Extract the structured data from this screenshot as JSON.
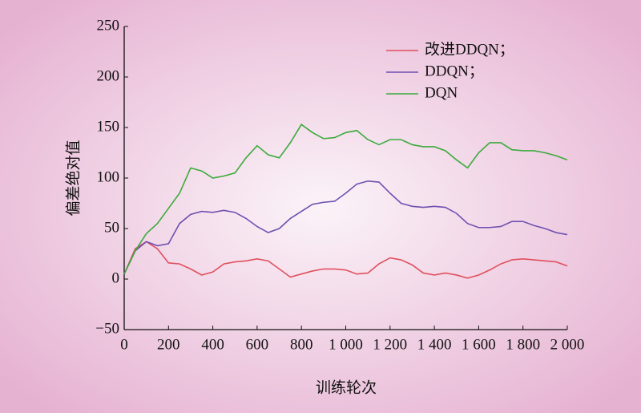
{
  "chart_data": {
    "type": "line",
    "x_label": "训练轮次",
    "y_label": "偏差绝对值",
    "x": [
      0,
      50,
      100,
      150,
      200,
      250,
      300,
      350,
      400,
      450,
      500,
      550,
      600,
      650,
      700,
      750,
      800,
      850,
      900,
      950,
      1000,
      1050,
      1100,
      1150,
      1200,
      1250,
      1300,
      1350,
      1400,
      1450,
      1500,
      1550,
      1600,
      1650,
      1700,
      1750,
      1800,
      1850,
      1900,
      1950,
      2000
    ],
    "series": [
      {
        "name": "改进DDQN；",
        "color": "#e0505e",
        "values": [
          5,
          30,
          37,
          30,
          16,
          15,
          10,
          4,
          7,
          15,
          17,
          18,
          20,
          18,
          10,
          2,
          5,
          8,
          10,
          10,
          9,
          5,
          6,
          15,
          21,
          19,
          14,
          6,
          4,
          6,
          4,
          1,
          4,
          9,
          15,
          19,
          20,
          19,
          18,
          17,
          13
        ]
      },
      {
        "name": "DDQN；",
        "color": "#7050b0",
        "values": [
          5,
          28,
          37,
          33,
          35,
          55,
          64,
          67,
          66,
          68,
          66,
          60,
          52,
          46,
          50,
          60,
          67,
          74,
          76,
          77,
          85,
          94,
          97,
          96,
          85,
          75,
          72,
          71,
          72,
          71,
          65,
          55,
          51,
          51,
          52,
          57,
          57,
          53,
          50,
          46,
          44
        ]
      },
      {
        "name": "DQN",
        "color": "#3caa3c",
        "values": [
          5,
          28,
          45,
          55,
          70,
          85,
          110,
          107,
          100,
          102,
          105,
          120,
          132,
          123,
          120,
          135,
          153,
          145,
          139,
          140,
          145,
          147,
          138,
          133,
          138,
          138,
          133,
          131,
          131,
          127,
          118,
          110,
          125,
          135,
          135,
          128,
          127,
          127,
          125,
          122,
          118
        ]
      }
    ],
    "xlim": [
      0,
      2000
    ],
    "xticks": [
      0,
      200,
      400,
      600,
      800,
      {
        "value": 1000,
        "label": "1 000"
      },
      {
        "value": 1200,
        "label": "1 200"
      },
      {
        "value": 1400,
        "label": "1 400"
      },
      {
        "value": 1600,
        "label": "1 600"
      },
      {
        "value": 1800,
        "label": "1 800"
      },
      {
        "value": 2000,
        "label": "2 000"
      }
    ],
    "ylim": [
      -50,
      250
    ],
    "yticks": [
      {
        "value": -50,
        "label": "−50"
      },
      0,
      50,
      100,
      150,
      200,
      250
    ],
    "legend": "top-right"
  }
}
